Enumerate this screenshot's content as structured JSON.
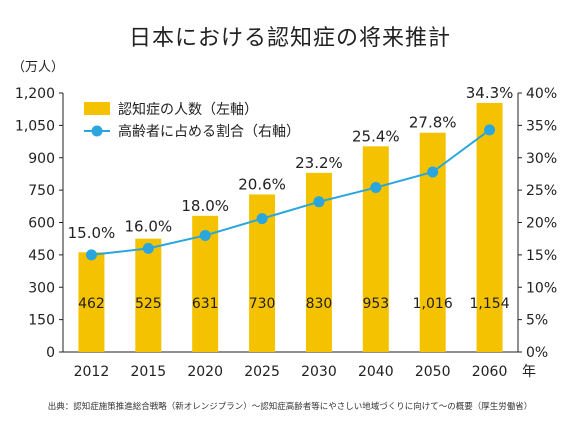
{
  "title": "日本における認知症の将来推計",
  "y_unit": "（万人）",
  "x_unit": "年",
  "source": "出典：認知症施策推進総合戦略（新オレンジプラン）～認知症高齢者等にやさしい地域づくりに向けて～の概要（厚生労働省）",
  "chart_data": {
    "type": "bar",
    "title": "日本における認知症の将来推計",
    "categories": [
      "2012",
      "2015",
      "2020",
      "2025",
      "2030",
      "2040",
      "2050",
      "2060"
    ],
    "series": [
      {
        "name": "認知症の人数（左軸）",
        "type": "bar",
        "axis": "left",
        "values": [
          462,
          525,
          631,
          730,
          830,
          953,
          1016,
          1154
        ],
        "labels": [
          "462",
          "525",
          "631",
          "730",
          "830",
          "953",
          "1,016",
          "1,154"
        ],
        "color": "#f5c200"
      },
      {
        "name": "高齢者に占める割合（右軸）",
        "type": "line",
        "axis": "right",
        "values": [
          15.0,
          16.0,
          18.0,
          20.6,
          23.2,
          25.4,
          27.8,
          34.3
        ],
        "labels": [
          "15.0%",
          "16.0%",
          "18.0%",
          "20.6%",
          "23.2%",
          "25.4%",
          "27.8%",
          "34.3%"
        ],
        "color": "#2aa6de"
      }
    ],
    "y_left": {
      "min": 0,
      "max": 1200,
      "ticks": [
        "0",
        "150",
        "300",
        "450",
        "600",
        "750",
        "900",
        "1,050",
        "1,200"
      ]
    },
    "y_right": {
      "min": 0,
      "max": 40,
      "ticks": [
        "0%",
        "5%",
        "10%",
        "15%",
        "20%",
        "25%",
        "30%",
        "35%",
        "40%"
      ]
    },
    "legend_position": "top-left",
    "grid": false
  }
}
